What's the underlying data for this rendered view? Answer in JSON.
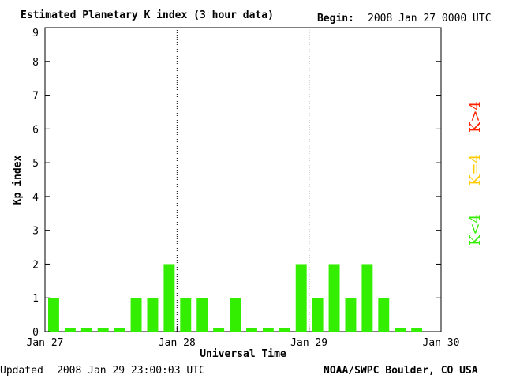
{
  "header": {
    "title": "Estimated Planetary K index (3 hour data)",
    "begin_label": "Begin:",
    "begin_value": "2008 Jan 27 0000 UTC"
  },
  "footer": {
    "updated_label": "Updated",
    "updated_value": "2008 Jan 29 23:00:03 UTC",
    "source": "NOAA/SWPC Boulder, CO USA"
  },
  "legend": [
    {
      "label": "K<4",
      "color": "#33ee00"
    },
    {
      "label": "K=4",
      "color": "#ffcc00"
    },
    {
      "label": "K>4",
      "color": "#ff2200"
    }
  ],
  "chart_data": {
    "type": "bar",
    "title": "Estimated Planetary K index (3 hour data)",
    "xlabel": "Universal Time",
    "ylabel": "Kp index",
    "ylim": [
      0,
      9
    ],
    "yticks": [
      0,
      1,
      2,
      3,
      4,
      5,
      6,
      7,
      8,
      9
    ],
    "xticks": [
      "Jan 27",
      "Jan 28",
      "Jan 29",
      "Jan 30"
    ],
    "interval_hours": 3,
    "values": [
      1,
      0,
      0,
      0,
      0,
      1,
      1,
      2,
      1,
      1,
      0,
      1,
      0,
      0,
      0,
      2,
      1,
      2,
      1,
      2,
      1,
      0,
      0
    ],
    "bar_color": "#33ee00",
    "grid": false,
    "day_separators": true
  }
}
